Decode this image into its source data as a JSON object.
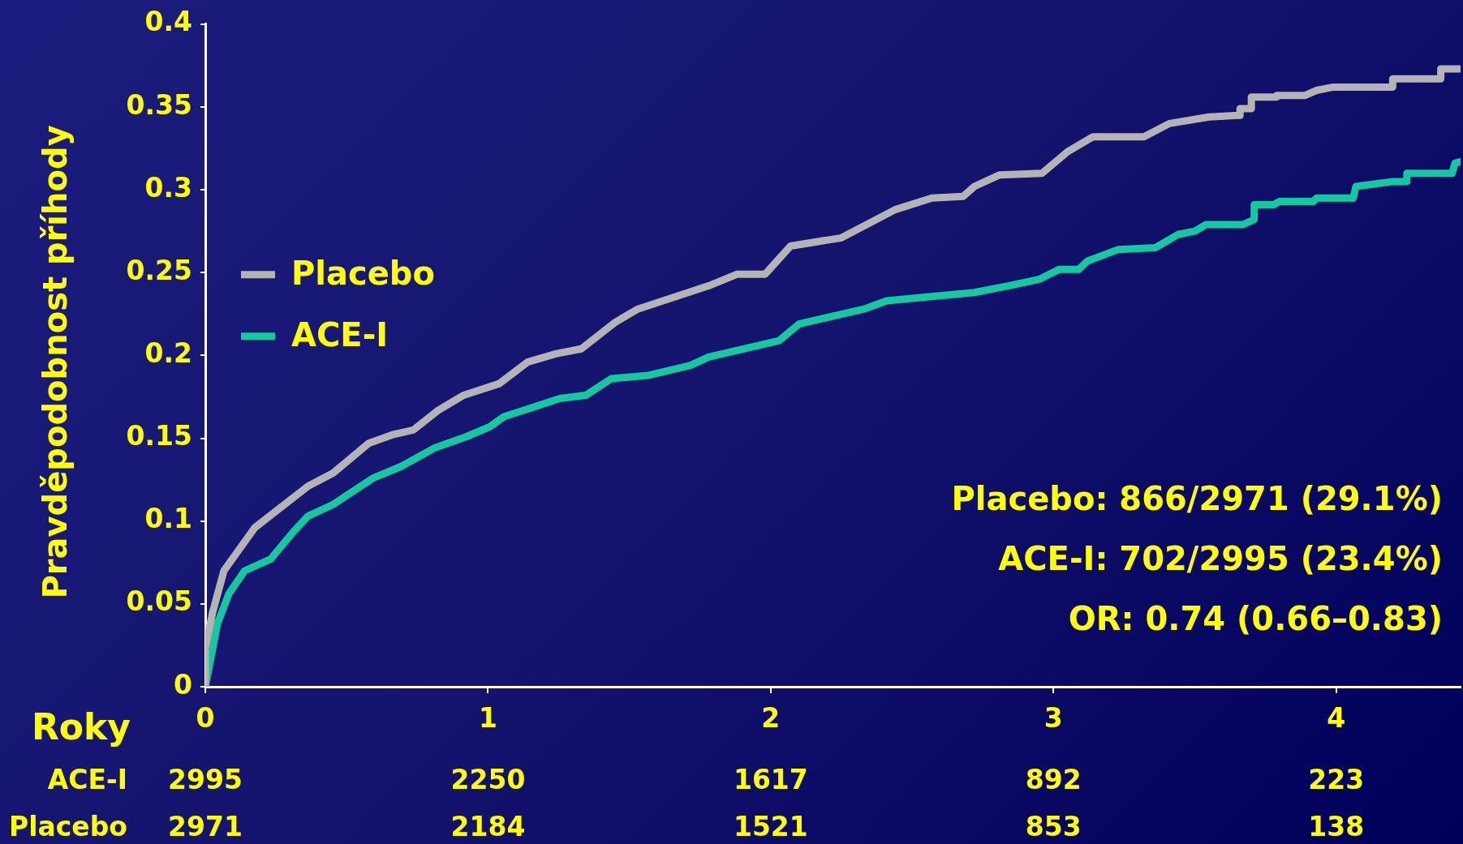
{
  "chart_data": {
    "type": "line",
    "xlabel": "Roky",
    "ylabel": "Pravděpodobnost příhody",
    "xlim": [
      0,
      4.44
    ],
    "xticks": [
      0,
      1,
      2,
      3,
      4
    ],
    "ylim": [
      0,
      0.4
    ],
    "yticks": [
      0,
      0.05,
      0.1,
      0.15,
      0.2,
      0.25,
      0.3,
      0.35,
      0.4
    ],
    "grid": false,
    "legend": "left",
    "marker": "none",
    "line_style": "solid",
    "series": [
      {
        "name": "Placebo",
        "color": "#b4b4b4",
        "x": [
          0,
          0,
          0.026,
          0.066,
          0.175,
          0.363,
          0.452,
          0.578,
          0.66,
          0.736,
          0.825,
          0.914,
          1.04,
          1.14,
          1.24,
          1.33,
          1.45,
          1.53,
          1.78,
          1.88,
          1.98,
          2.07,
          2.25,
          2.44,
          2.57,
          2.68,
          2.72,
          2.81,
          2.96,
          3.05,
          3.14,
          3.32,
          3.41,
          3.55,
          3.66,
          3.66,
          3.7,
          3.7,
          3.79,
          3.79,
          3.89,
          3.93,
          3.99,
          4.2,
          4.2,
          4.37,
          4.37,
          4.44
        ],
        "values": [
          0,
          0.023,
          0.045,
          0.07,
          0.096,
          0.121,
          0.129,
          0.147,
          0.152,
          0.155,
          0.167,
          0.176,
          0.183,
          0.196,
          0.201,
          0.204,
          0.22,
          0.228,
          0.242,
          0.249,
          0.249,
          0.266,
          0.271,
          0.288,
          0.295,
          0.296,
          0.302,
          0.309,
          0.31,
          0.323,
          0.332,
          0.332,
          0.34,
          0.344,
          0.345,
          0.349,
          0.349,
          0.356,
          0.356,
          0.357,
          0.357,
          0.36,
          0.362,
          0.362,
          0.367,
          0.367,
          0.373,
          0.373
        ]
      },
      {
        "name": "ACE-I",
        "color": "#14c8a0",
        "x": [
          0,
          0.043,
          0.083,
          0.139,
          0.231,
          0.314,
          0.363,
          0.452,
          0.594,
          0.693,
          0.809,
          0.924,
          1.007,
          1.056,
          1.254,
          1.346,
          1.436,
          1.568,
          1.716,
          1.78,
          2.03,
          2.1,
          2.33,
          2.41,
          2.72,
          2.84,
          2.95,
          3.02,
          3.09,
          3.12,
          3.23,
          3.36,
          3.44,
          3.5,
          3.54,
          3.67,
          3.71,
          3.71,
          3.78,
          3.8,
          3.92,
          3.93,
          4.06,
          4.07,
          4.2,
          4.25,
          4.25,
          4.41,
          4.42,
          4.44
        ],
        "values": [
          0,
          0.038,
          0.056,
          0.07,
          0.077,
          0.094,
          0.103,
          0.11,
          0.126,
          0.133,
          0.144,
          0.151,
          0.157,
          0.163,
          0.174,
          0.176,
          0.186,
          0.188,
          0.194,
          0.199,
          0.209,
          0.219,
          0.228,
          0.233,
          0.238,
          0.242,
          0.246,
          0.252,
          0.252,
          0.257,
          0.264,
          0.265,
          0.273,
          0.275,
          0.279,
          0.279,
          0.282,
          0.291,
          0.291,
          0.293,
          0.293,
          0.295,
          0.295,
          0.302,
          0.305,
          0.305,
          0.31,
          0.31,
          0.316,
          0.317
        ]
      }
    ],
    "annotations": [
      "Placebo: 866/2971 (29.1%)",
      "ACE-I: 702/2995 (23.4%)",
      "OR: 0.74 (0.66–0.83)",
      "ACE-I 2995 2250 1617 892 223",
      "Placebo 2971 2184 1521 853 138"
    ]
  }
}
